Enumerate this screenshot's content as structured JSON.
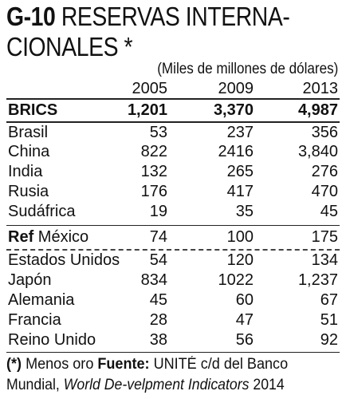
{
  "title": {
    "code": "G-10",
    "line1_rest": " RESERVAS INTERNA-",
    "line2": "CIONALES *"
  },
  "subtitle": "(Miles de millones de dólares)",
  "years": [
    "2005",
    "2009",
    "2013"
  ],
  "brics": {
    "label": "BRICS",
    "values": [
      "1,201",
      "3,370",
      "4,987"
    ]
  },
  "brics_members": [
    {
      "label": "Brasil",
      "values": [
        "53",
        "237",
        "356"
      ]
    },
    {
      "label": "China",
      "values": [
        "822",
        "2416",
        "3,840"
      ]
    },
    {
      "label": "India",
      "values": [
        "132",
        "265",
        "276"
      ]
    },
    {
      "label": "Rusia",
      "values": [
        "176",
        "417",
        "470"
      ]
    },
    {
      "label": "Sudáfrica",
      "values": [
        "19",
        "35",
        "45"
      ]
    }
  ],
  "reference": {
    "prefix": "Ref",
    "label": "México",
    "values": [
      "74",
      "100",
      "175"
    ]
  },
  "others": [
    {
      "label": "Estados Unidos",
      "values": [
        "54",
        "120",
        "134"
      ]
    },
    {
      "label": "Japón",
      "values": [
        "834",
        "1022",
        "1,237"
      ]
    },
    {
      "label": "Alemania",
      "values": [
        "45",
        "60",
        "67"
      ]
    },
    {
      "label": "Francia",
      "values": [
        "28",
        "47",
        "51"
      ]
    },
    {
      "label": "Reino Unido",
      "values": [
        "38",
        "56",
        "92"
      ]
    }
  ],
  "footer": {
    "note_mark": "(*)",
    "note_text": " Menos oro  ",
    "source_label": "Fuente:",
    "source_text": " UNITÉ c/d del Banco",
    "line2_text": "Mundial, ",
    "line2_italic": "World De-velpment Indicators",
    "line2_end": " 2014"
  }
}
